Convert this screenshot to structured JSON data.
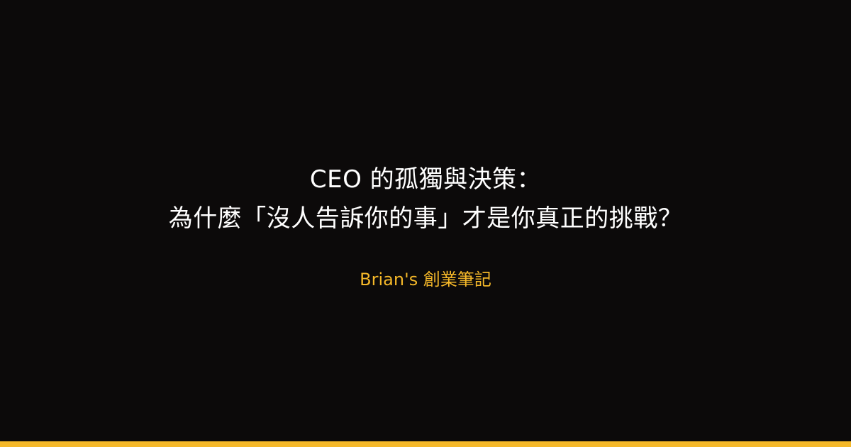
{
  "title": {
    "line1": "CEO 的孤獨與決策：",
    "line2": "為什麼「沒人告訴你的事」才是你真正的挑戰？"
  },
  "author": "Brian's 創業筆記",
  "colors": {
    "background": "#0c0a0a",
    "title_text": "#ffffff",
    "accent": "#f5b829"
  }
}
